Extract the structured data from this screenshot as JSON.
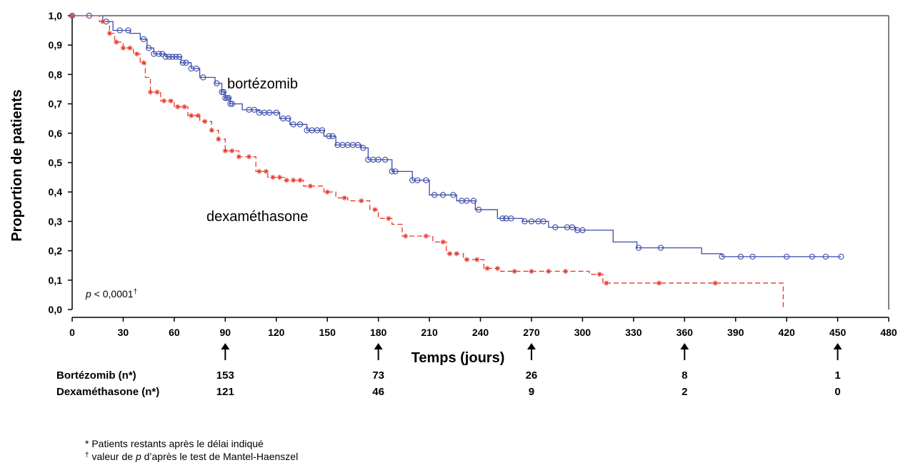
{
  "chart_data": {
    "type": "line",
    "xlabel": "Temps (jours)",
    "ylabel": "Proportion de patients",
    "xlim": [
      0,
      480
    ],
    "ylim": [
      0,
      1
    ],
    "x_ticks": [
      "0",
      "30",
      "60",
      "90",
      "120",
      "150",
      "180",
      "210",
      "240",
      "270",
      "300",
      "330",
      "360",
      "390",
      "420",
      "450",
      "480"
    ],
    "y_ticks": [
      "0,0",
      "0,1",
      "0,2",
      "0,3",
      "0,4",
      "0,5",
      "0,6",
      "0,7",
      "0,8",
      "0,9",
      "1,0"
    ],
    "annotation": "p < 0,0001†",
    "annotation_parts": {
      "p": "p",
      "rest": " < 0,0001",
      "dagger": "†"
    },
    "series": [
      {
        "name": "bortézomib",
        "color": "#3a4ba8",
        "style": "solid",
        "marker": "circle",
        "steps": [
          [
            0,
            1.0
          ],
          [
            18,
            0.98
          ],
          [
            24,
            0.95
          ],
          [
            34,
            0.94
          ],
          [
            40,
            0.92
          ],
          [
            44,
            0.89
          ],
          [
            48,
            0.87
          ],
          [
            55,
            0.86
          ],
          [
            64,
            0.84
          ],
          [
            70,
            0.82
          ],
          [
            75,
            0.79
          ],
          [
            84,
            0.77
          ],
          [
            88,
            0.74
          ],
          [
            90,
            0.72
          ],
          [
            93,
            0.7
          ],
          [
            100,
            0.68
          ],
          [
            110,
            0.67
          ],
          [
            122,
            0.65
          ],
          [
            128,
            0.63
          ],
          [
            138,
            0.61
          ],
          [
            148,
            0.59
          ],
          [
            155,
            0.56
          ],
          [
            170,
            0.55
          ],
          [
            174,
            0.51
          ],
          [
            188,
            0.47
          ],
          [
            200,
            0.44
          ],
          [
            210,
            0.39
          ],
          [
            226,
            0.37
          ],
          [
            237,
            0.34
          ],
          [
            250,
            0.31
          ],
          [
            265,
            0.3
          ],
          [
            280,
            0.28
          ],
          [
            296,
            0.27
          ],
          [
            318,
            0.23
          ],
          [
            332,
            0.21
          ],
          [
            370,
            0.19
          ],
          [
            382,
            0.18
          ],
          [
            452,
            0.18
          ]
        ],
        "censor_x": [
          0,
          10,
          20,
          28,
          33,
          42,
          45,
          48,
          51,
          53,
          55,
          57,
          59,
          61,
          63,
          65,
          67,
          70,
          73,
          77,
          85,
          88,
          89,
          90,
          91,
          92,
          93,
          94,
          104,
          107,
          110,
          113,
          116,
          120,
          124,
          127,
          130,
          134,
          138,
          141,
          144,
          147,
          151,
          153,
          156,
          159,
          162,
          165,
          168,
          171,
          174,
          177,
          180,
          184,
          188,
          190,
          200,
          203,
          208,
          213,
          218,
          224,
          229,
          232,
          236,
          239,
          253,
          255,
          258,
          266,
          270,
          274,
          277,
          284,
          291,
          294,
          297,
          300,
          333,
          346,
          382,
          393,
          400,
          420,
          435,
          443,
          452
        ]
      },
      {
        "name": "dexaméthasone",
        "color": "#e8382c",
        "style": "dashed",
        "marker": "star",
        "steps": [
          [
            0,
            1.0
          ],
          [
            16,
            0.98
          ],
          [
            22,
            0.94
          ],
          [
            25,
            0.91
          ],
          [
            30,
            0.89
          ],
          [
            36,
            0.87
          ],
          [
            40,
            0.84
          ],
          [
            43,
            0.79
          ],
          [
            46,
            0.74
          ],
          [
            52,
            0.71
          ],
          [
            60,
            0.69
          ],
          [
            68,
            0.66
          ],
          [
            75,
            0.64
          ],
          [
            82,
            0.61
          ],
          [
            86,
            0.58
          ],
          [
            90,
            0.54
          ],
          [
            98,
            0.52
          ],
          [
            108,
            0.47
          ],
          [
            115,
            0.45
          ],
          [
            125,
            0.44
          ],
          [
            136,
            0.42
          ],
          [
            148,
            0.4
          ],
          [
            155,
            0.38
          ],
          [
            162,
            0.37
          ],
          [
            175,
            0.34
          ],
          [
            180,
            0.31
          ],
          [
            188,
            0.29
          ],
          [
            194,
            0.25
          ],
          [
            212,
            0.23
          ],
          [
            220,
            0.19
          ],
          [
            230,
            0.17
          ],
          [
            242,
            0.14
          ],
          [
            252,
            0.13
          ],
          [
            290,
            0.13
          ],
          [
            304,
            0.12
          ],
          [
            312,
            0.09
          ],
          [
            418,
            0.09
          ],
          [
            418,
            0.0
          ]
        ],
        "censor_x": [
          0,
          18,
          22,
          26,
          30,
          34,
          38,
          42,
          46,
          50,
          54,
          58,
          62,
          66,
          70,
          74,
          78,
          82,
          86,
          90,
          94,
          98,
          104,
          110,
          114,
          118,
          122,
          126,
          130,
          134,
          140,
          150,
          160,
          170,
          178,
          186,
          196,
          208,
          218,
          222,
          226,
          232,
          238,
          244,
          250,
          260,
          270,
          280,
          290,
          310,
          314,
          345,
          378
        ]
      }
    ]
  },
  "series_labels": {
    "bortezomib": "bortézomib",
    "dexamethasone": "dexaméthasone"
  },
  "at_risk": {
    "arrow_days": [
      90,
      180,
      270,
      360,
      450
    ],
    "rows": [
      {
        "label": "Bortézomib (n*)",
        "values": [
          "153",
          "73",
          "26",
          "8",
          "1"
        ]
      },
      {
        "label": "Dexaméthasone (n*)",
        "values": [
          "121",
          "46",
          "9",
          "2",
          "0"
        ]
      }
    ]
  },
  "footnotes": [
    "* Patients restants après le délai indiqué",
    "† valeur de p d’après le test de Mantel-Haenszel"
  ]
}
